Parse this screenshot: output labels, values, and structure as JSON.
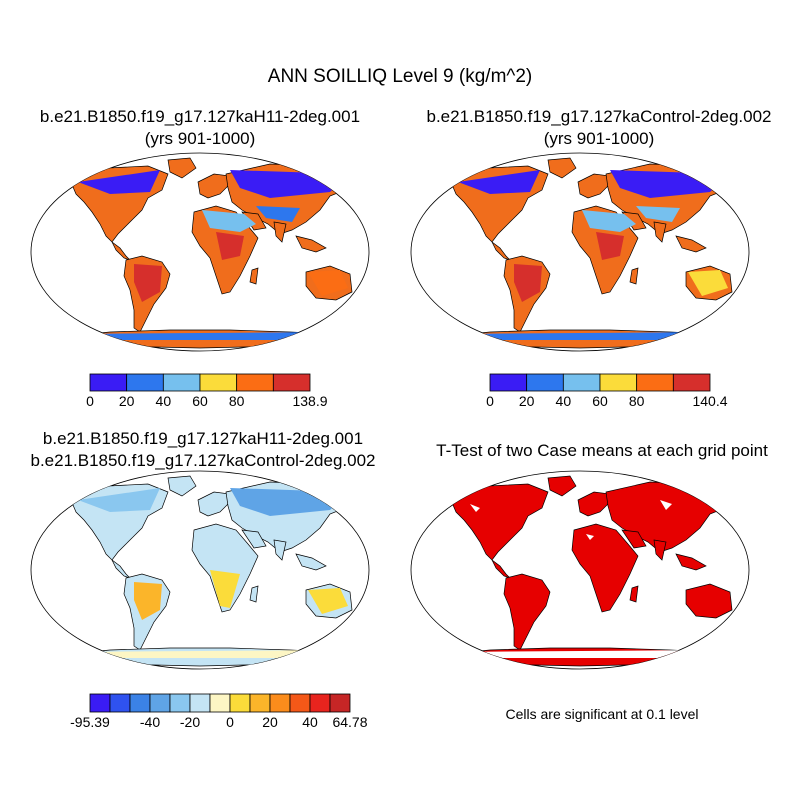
{
  "title": "ANN SOILLIQ Level 9 (kg/m^2)",
  "panels": [
    {
      "id": "case1",
      "title_line1": "b.e21.B1850.f19_g17.127kaH11-2deg.001",
      "title_line2": "(yrs 901-1000)",
      "colorbar": {
        "colors": [
          "#3a1cf5",
          "#2d77ee",
          "#76c0ee",
          "#fbdc3a",
          "#fb6d14",
          "#d62f2c"
        ],
        "tick_labels": [
          "0",
          "20",
          "40",
          "60",
          "80",
          "138.9"
        ],
        "min": 0,
        "max": 138.9
      }
    },
    {
      "id": "case2",
      "title_line1": "b.e21.B1850.f19_g17.127kaControl-2deg.002",
      "title_line2": "(yrs 901-1000)",
      "colorbar": {
        "colors": [
          "#3a1cf5",
          "#2d77ee",
          "#76c0ee",
          "#fbdc3a",
          "#fb6d14",
          "#d62f2c"
        ],
        "tick_labels": [
          "0",
          "20",
          "40",
          "60",
          "80",
          "140.4"
        ],
        "min": 0,
        "max": 140.4
      }
    },
    {
      "id": "diff",
      "title_line1": "b.e21.B1850.f19_g17.127kaH11-2deg.001",
      "title_line2": "b.e21.B1850.f19_g17.127kaControl-2deg.002",
      "colorbar": {
        "colors": [
          "#3a1cf5",
          "#2f52ef",
          "#3b82e6",
          "#5fa4e6",
          "#8ac7ef",
          "#c4e4f4",
          "#fdf6c4",
          "#fbdc3a",
          "#fbb52a",
          "#fb8c1c",
          "#f45818",
          "#e8241e",
          "#c62626"
        ],
        "tick_labels": [
          "-95.39",
          "-40",
          "-20",
          "0",
          "20",
          "40",
          "64.78"
        ],
        "min": -95.39,
        "max": 64.78
      }
    },
    {
      "id": "ttest",
      "title_line1": "T-Test of two Case means at each grid point",
      "note": "Cells are significant at 0.1 level"
    }
  ],
  "colors": {
    "sig_red": "#e60000",
    "ocean": "#ffffff"
  }
}
